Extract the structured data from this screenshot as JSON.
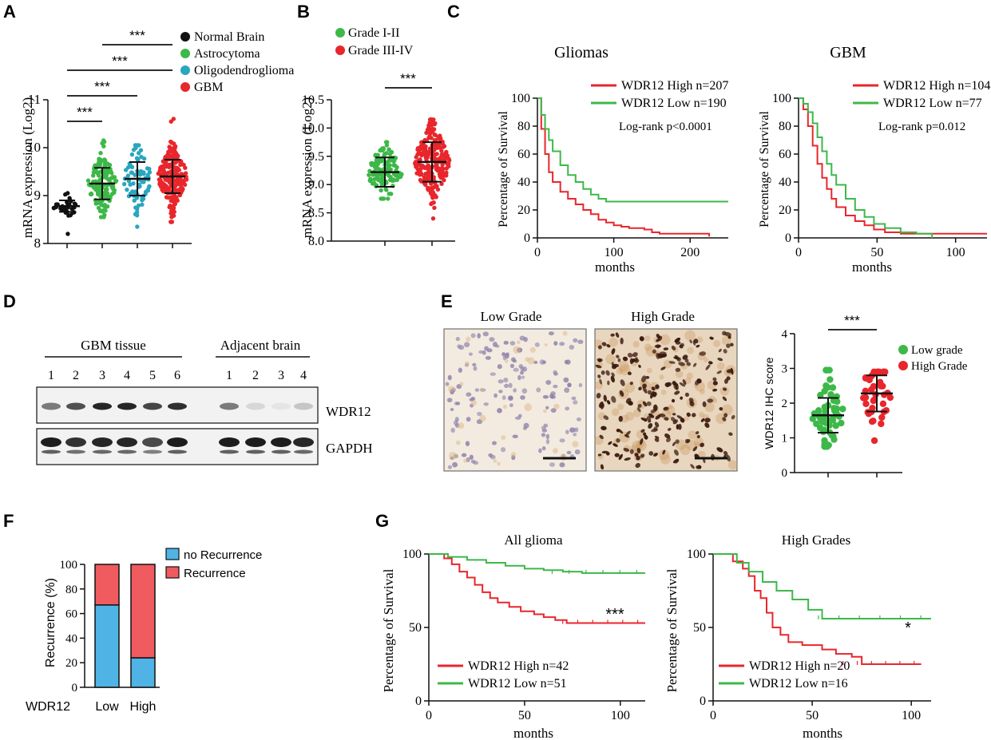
{
  "panels": {
    "A": "A",
    "B": "B",
    "C": "C",
    "D": "D",
    "E": "E",
    "F": "F",
    "G": "G"
  },
  "colors": {
    "black": "#111111",
    "green": "#3db849",
    "teal": "#2aa6bf",
    "red": "#e8262c",
    "blue_bar": "#4fb3e6",
    "red_bar": "#ef5b5e",
    "km_red": "#e8262c",
    "km_green": "#3db849"
  },
  "chart_data": [
    {
      "id": "A",
      "type": "scatter",
      "ylabel": "mRNA expression (Log2)",
      "ylim": [
        8,
        11
      ],
      "yticks": [
        "8",
        "9",
        "10",
        "11"
      ],
      "legend": [
        "Normal Brain",
        "Astrocytoma",
        "Oligodendroglioma",
        "GBM"
      ],
      "groups": [
        {
          "name": "Normal Brain",
          "mean": 8.78,
          "sd": 0.12,
          "min": 8.2,
          "max": 9.05,
          "n": 35
        },
        {
          "name": "Astrocytoma",
          "mean": 9.25,
          "sd": 0.33,
          "min": 8.55,
          "max": 10.15,
          "n": 160
        },
        {
          "name": "Oligodendroglioma",
          "mean": 9.35,
          "sd": 0.35,
          "min": 8.35,
          "max": 10.05,
          "n": 80
        },
        {
          "name": "GBM",
          "mean": 9.4,
          "sd": 0.35,
          "min": 8.45,
          "max": 10.6,
          "n": 230
        }
      ],
      "significance": [
        "***",
        "***",
        "***",
        "***"
      ]
    },
    {
      "id": "B",
      "type": "scatter",
      "ylabel": "mRNA expression (Log2)",
      "ylim": [
        8.0,
        10.5
      ],
      "yticks": [
        "8.0",
        "8.5",
        "9.0",
        "9.5",
        "10.0",
        "10.5"
      ],
      "legend": [
        "Grade I-II",
        "Grade III-IV"
      ],
      "groups": [
        {
          "name": "Grade I-II",
          "mean": 9.22,
          "sd": 0.26,
          "min": 8.75,
          "max": 9.75,
          "n": 120
        },
        {
          "name": "Grade III-IV",
          "mean": 9.4,
          "sd": 0.35,
          "min": 8.4,
          "max": 10.15,
          "n": 250
        }
      ],
      "significance": [
        "***"
      ]
    },
    {
      "id": "C1",
      "type": "line",
      "title": "Gliomas",
      "xlabel": "months",
      "ylabel": "Percentage of Survival",
      "xlim": [
        0,
        250
      ],
      "ylim": [
        0,
        100
      ],
      "xticks": [
        "0",
        "100",
        "200"
      ],
      "yticks": [
        "0",
        "20",
        "40",
        "60",
        "80",
        "100"
      ],
      "legend": [
        "WDR12 High n=207",
        "WDR12 Low  n=190"
      ],
      "annotation": "Log-rank  p<0.0001",
      "series": [
        {
          "name": "WDR12 High",
          "x": [
            0,
            5,
            10,
            15,
            20,
            30,
            40,
            50,
            60,
            70,
            80,
            90,
            100,
            110,
            120,
            140,
            150,
            160,
            180,
            200,
            225
          ],
          "y": [
            100,
            78,
            60,
            47,
            40,
            33,
            28,
            24,
            20,
            17,
            13,
            11,
            9,
            8,
            7,
            6,
            4,
            3,
            3,
            3,
            1
          ]
        },
        {
          "name": "WDR12 Low",
          "x": [
            0,
            5,
            10,
            15,
            20,
            30,
            40,
            50,
            60,
            70,
            80,
            90,
            100,
            150,
            200,
            250
          ],
          "y": [
            100,
            88,
            78,
            70,
            62,
            52,
            45,
            40,
            35,
            31,
            28,
            26,
            26,
            26,
            26,
            26
          ]
        }
      ]
    },
    {
      "id": "C2",
      "type": "line",
      "title": "GBM",
      "xlabel": "months",
      "ylabel": "Percentage of Survival",
      "xlim": [
        0,
        120
      ],
      "ylim": [
        0,
        100
      ],
      "xticks": [
        "0",
        "50",
        "100"
      ],
      "yticks": [
        "0",
        "20",
        "40",
        "60",
        "80",
        "100"
      ],
      "legend": [
        "WDR12 High n=104",
        "WDR12 Low  n=77"
      ],
      "annotation": "Log-rank  p=0.012",
      "series": [
        {
          "name": "WDR12 High",
          "x": [
            0,
            3,
            6,
            9,
            12,
            15,
            18,
            21,
            24,
            30,
            36,
            42,
            48,
            55,
            65,
            80,
            100,
            120
          ],
          "y": [
            100,
            92,
            80,
            66,
            53,
            43,
            35,
            28,
            22,
            16,
            12,
            9,
            6,
            4,
            3,
            3,
            3,
            3
          ]
        },
        {
          "name": "WDR12 Low",
          "x": [
            0,
            3,
            6,
            9,
            12,
            15,
            18,
            21,
            24,
            30,
            36,
            42,
            48,
            55,
            65,
            75,
            85
          ],
          "y": [
            100,
            96,
            90,
            82,
            72,
            62,
            53,
            45,
            38,
            28,
            20,
            15,
            10,
            7,
            4,
            3,
            0
          ]
        }
      ]
    },
    {
      "id": "E",
      "type": "scatter",
      "ylabel": "WDR12 IHC score",
      "ylim": [
        0,
        4
      ],
      "yticks": [
        "0",
        "1",
        "2",
        "3",
        "4"
      ],
      "legend": [
        "Low grade",
        "High Grade"
      ],
      "groups": [
        {
          "name": "Low grade",
          "mean": 1.65,
          "sd": 0.5,
          "min": 0.75,
          "max": 2.95,
          "n": 60
        },
        {
          "name": "High Grade",
          "mean": 2.28,
          "sd": 0.52,
          "min": 0.92,
          "max": 2.9,
          "n": 40
        }
      ],
      "significance": [
        "***"
      ]
    },
    {
      "id": "F",
      "type": "bar",
      "ylabel": "Recurrence (%)",
      "ylim": [
        0,
        100
      ],
      "yticks": [
        "0",
        "20",
        "40",
        "60",
        "80",
        "100"
      ],
      "row_label": "WDR12",
      "categories": [
        "Low",
        "High"
      ],
      "legend": [
        "no Recurrence",
        "Recurrence"
      ],
      "series": [
        {
          "name": "no Recurrence",
          "values": [
            67,
            24
          ]
        },
        {
          "name": "Recurrence",
          "values": [
            33,
            76
          ]
        }
      ]
    },
    {
      "id": "G1",
      "type": "line",
      "title": "All glioma",
      "xlabel": "months",
      "ylabel": "Percentage of Survival",
      "xlim": [
        0,
        113
      ],
      "ylim": [
        0,
        100
      ],
      "xticks": [
        "0",
        "50",
        "100"
      ],
      "yticks": [
        "0",
        "50",
        "100"
      ],
      "legend": [
        "WDR12 High n=42",
        "WDR12 Low  n=51"
      ],
      "significance": "***",
      "series": [
        {
          "name": "WDR12 High",
          "x": [
            0,
            8,
            12,
            16,
            20,
            24,
            28,
            32,
            36,
            42,
            48,
            55,
            60,
            66,
            72,
            78,
            113
          ],
          "y": [
            100,
            97,
            93,
            88,
            84,
            79,
            74,
            70,
            67,
            64,
            61,
            59,
            57,
            55,
            53,
            53,
            53
          ]
        },
        {
          "name": "WDR12 Low",
          "x": [
            0,
            10,
            20,
            30,
            40,
            50,
            60,
            70,
            80,
            113
          ],
          "y": [
            100,
            98,
            96,
            94,
            92,
            90,
            89,
            88,
            87,
            87
          ]
        }
      ]
    },
    {
      "id": "G2",
      "type": "line",
      "title": "High Grades",
      "xlabel": "months",
      "ylabel": "Percentage of Survival",
      "xlim": [
        0,
        110
      ],
      "ylim": [
        0,
        100
      ],
      "xticks": [
        "0",
        "50",
        "100"
      ],
      "yticks": [
        "0",
        "50",
        "100"
      ],
      "legend": [
        "WDR12 High n=20",
        "WDR12 Low  n=16"
      ],
      "significance": "*",
      "series": [
        {
          "name": "WDR12 High",
          "x": [
            0,
            10,
            15,
            18,
            21,
            24,
            27,
            30,
            34,
            38,
            45,
            55,
            62,
            70,
            75,
            105
          ],
          "y": [
            100,
            95,
            90,
            85,
            75,
            70,
            60,
            50,
            45,
            40,
            38,
            35,
            32,
            30,
            25,
            25
          ]
        },
        {
          "name": "WDR12 Low",
          "x": [
            0,
            12,
            18,
            25,
            32,
            40,
            48,
            55,
            62,
            110
          ],
          "y": [
            100,
            94,
            88,
            81,
            75,
            69,
            62,
            56,
            56,
            56
          ]
        }
      ]
    }
  ],
  "blot": {
    "group_labels": [
      "GBM tissue",
      "Adjacent brain"
    ],
    "lanes_gbm": [
      "1",
      "2",
      "3",
      "4",
      "5",
      "6"
    ],
    "lanes_adj": [
      "1",
      "2",
      "3",
      "4"
    ],
    "bands": [
      "WDR12",
      "GAPDH"
    ],
    "wdr12_intensity": [
      0.55,
      0.75,
      0.95,
      0.95,
      0.8,
      0.9,
      0.55,
      0.12,
      0.06,
      0.2
    ],
    "gapdh_intensity": [
      0.95,
      0.85,
      0.9,
      0.9,
      0.75,
      0.95,
      0.95,
      0.95,
      0.95,
      0.9
    ]
  },
  "ihc": {
    "titles": [
      "Low Grade",
      "High Grade"
    ]
  }
}
